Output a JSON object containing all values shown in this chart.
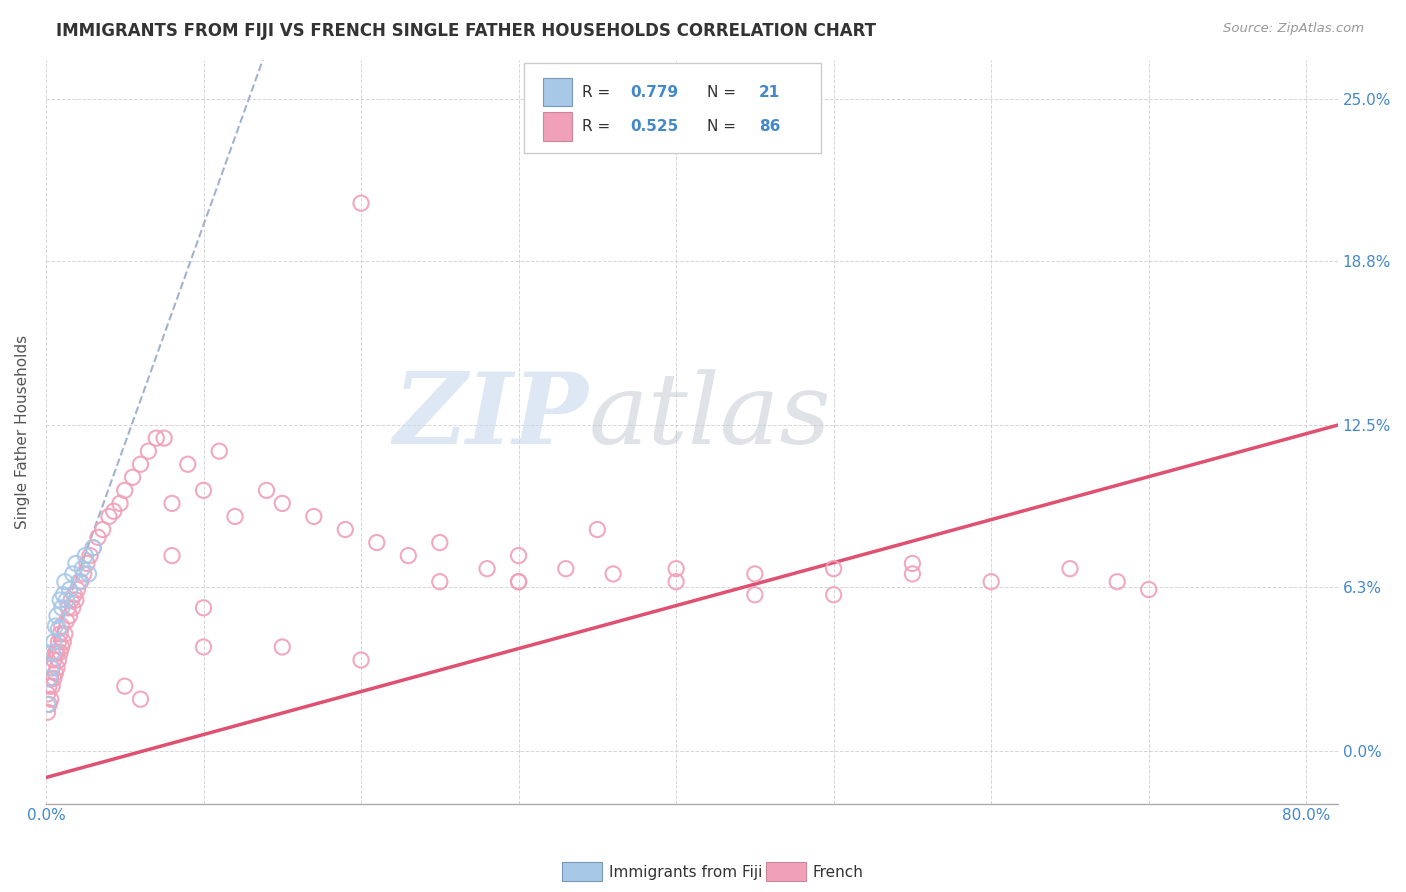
{
  "title": "IMMIGRANTS FROM FIJI VS FRENCH SINGLE FATHER HOUSEHOLDS CORRELATION CHART",
  "source": "Source: ZipAtlas.com",
  "ylabel": "Single Father Households",
  "xlim": [
    0.0,
    0.82
  ],
  "ylim": [
    -0.02,
    0.265
  ],
  "fiji_R": 0.779,
  "fiji_N": 21,
  "french_R": 0.525,
  "french_N": 86,
  "fiji_color": "#a8c8e8",
  "french_color": "#f0a0b8",
  "fiji_trendline_color": "#99aacc",
  "french_trendline_color": "#e05070",
  "background_color": "#ffffff",
  "grid_color": "#cccccc",
  "ytick_vals": [
    0.0,
    0.063,
    0.125,
    0.188,
    0.25
  ],
  "ytick_labels": [
    "0.0%",
    "6.3%",
    "12.5%",
    "18.8%",
    "25.0%"
  ],
  "fiji_scatter_x": [
    0.001,
    0.002,
    0.003,
    0.004,
    0.005,
    0.006,
    0.007,
    0.008,
    0.009,
    0.01,
    0.011,
    0.012,
    0.013,
    0.015,
    0.017,
    0.019,
    0.021,
    0.023,
    0.025,
    0.027,
    0.03
  ],
  "fiji_scatter_y": [
    0.018,
    0.028,
    0.032,
    0.038,
    0.042,
    0.048,
    0.052,
    0.047,
    0.058,
    0.055,
    0.06,
    0.065,
    0.058,
    0.062,
    0.068,
    0.072,
    0.065,
    0.07,
    0.075,
    0.068,
    0.078
  ],
  "french_scatter_x": [
    0.001,
    0.001,
    0.002,
    0.002,
    0.003,
    0.003,
    0.004,
    0.004,
    0.005,
    0.005,
    0.006,
    0.006,
    0.007,
    0.007,
    0.008,
    0.008,
    0.009,
    0.009,
    0.01,
    0.01,
    0.011,
    0.012,
    0.013,
    0.014,
    0.015,
    0.016,
    0.017,
    0.018,
    0.019,
    0.02,
    0.022,
    0.024,
    0.026,
    0.028,
    0.03,
    0.033,
    0.036,
    0.04,
    0.043,
    0.047,
    0.05,
    0.055,
    0.06,
    0.065,
    0.07,
    0.075,
    0.08,
    0.09,
    0.1,
    0.11,
    0.12,
    0.14,
    0.15,
    0.17,
    0.19,
    0.21,
    0.23,
    0.25,
    0.28,
    0.3,
    0.33,
    0.36,
    0.4,
    0.45,
    0.5,
    0.55,
    0.6,
    0.65,
    0.68,
    0.7,
    0.2,
    0.08,
    0.3,
    0.1,
    0.25,
    0.05,
    0.35,
    0.4,
    0.15,
    0.45,
    0.5,
    0.55,
    0.3,
    0.2,
    0.1,
    0.06
  ],
  "french_scatter_y": [
    0.015,
    0.022,
    0.018,
    0.025,
    0.02,
    0.028,
    0.025,
    0.032,
    0.028,
    0.035,
    0.03,
    0.038,
    0.032,
    0.038,
    0.035,
    0.042,
    0.038,
    0.045,
    0.04,
    0.048,
    0.042,
    0.045,
    0.05,
    0.055,
    0.052,
    0.058,
    0.055,
    0.06,
    0.058,
    0.062,
    0.065,
    0.068,
    0.072,
    0.075,
    0.078,
    0.082,
    0.085,
    0.09,
    0.092,
    0.095,
    0.1,
    0.105,
    0.11,
    0.115,
    0.12,
    0.12,
    0.095,
    0.11,
    0.1,
    0.115,
    0.09,
    0.1,
    0.095,
    0.09,
    0.085,
    0.08,
    0.075,
    0.08,
    0.07,
    0.065,
    0.07,
    0.068,
    0.065,
    0.068,
    0.07,
    0.072,
    0.065,
    0.07,
    0.065,
    0.062,
    0.21,
    0.075,
    0.065,
    0.055,
    0.065,
    0.025,
    0.085,
    0.07,
    0.04,
    0.06,
    0.06,
    0.068,
    0.075,
    0.035,
    0.04,
    0.02
  ],
  "watermark_zip": "ZIP",
  "watermark_atlas": "atlas",
  "watermark_color_zip": "#c8d8ee",
  "watermark_color_atlas": "#c0c8d0"
}
